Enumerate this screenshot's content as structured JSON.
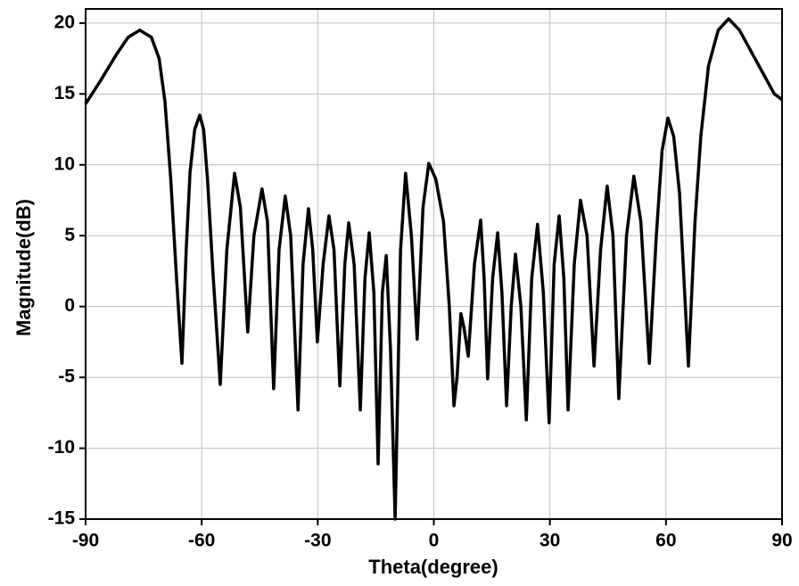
{
  "chart_data": {
    "type": "line",
    "x_label": "Theta(degree)",
    "y_label": "Magnitude(dB)",
    "x": [
      -90,
      -86,
      -82,
      -79,
      -76,
      -73,
      -71,
      -69.5,
      -68,
      -66.5,
      -65.1,
      -64,
      -63,
      -61.8,
      -60.5,
      -59.5,
      -58.5,
      -57,
      -55.2,
      -53.5,
      -51.5,
      -50,
      -48.1,
      -46.5,
      -44.4,
      -43,
      -41.4,
      -40,
      -38.4,
      -37,
      -35.1,
      -33.8,
      -32.4,
      -31.3,
      -30.1,
      -28.6,
      -27.1,
      -25.8,
      -24.3,
      -23,
      -22,
      -20.6,
      -19,
      -17.8,
      -16.7,
      -15.5,
      -14.4,
      -13.3,
      -12.3,
      -11.2,
      -10,
      -8.6,
      -7.3,
      -5.8,
      -4.3,
      -2.8,
      -1.3,
      0.5,
      2.5,
      4,
      5.2,
      6,
      7,
      7.8,
      8.9,
      10.5,
      12.1,
      13,
      13.9,
      15.2,
      16.5,
      17.6,
      18.8,
      20,
      21.1,
      22.5,
      23.9,
      25.3,
      26.8,
      28.3,
      29.8,
      31.1,
      32.4,
      33.6,
      34.7,
      36.3,
      37.9,
      39.6,
      41.4,
      43.1,
      44.8,
      46.3,
      47.8,
      49.8,
      51.7,
      53.5,
      55.7,
      57.5,
      59,
      60.5,
      62,
      63.5,
      65.8,
      67.5,
      69,
      71,
      73.5,
      76.2,
      79,
      82,
      85,
      88,
      90
    ],
    "values": [
      14.3,
      16,
      17.8,
      19,
      19.5,
      19,
      17.5,
      14.5,
      9,
      2,
      -4,
      4,
      9.5,
      12.5,
      13.5,
      12.5,
      9,
      2,
      -5.5,
      4,
      9.4,
      7,
      -1.8,
      5,
      8.3,
      6,
      -5.8,
      4,
      7.8,
      5,
      -7.3,
      3,
      6.9,
      4,
      -2.5,
      3,
      6.4,
      4,
      -5.6,
      3,
      5.9,
      3,
      -7.3,
      2,
      5.2,
      1,
      -11.1,
      1,
      3.6,
      -3,
      -15,
      4,
      9.4,
      5,
      -2.3,
      7,
      10.1,
      9,
      6,
      0,
      -7,
      -5,
      -0.5,
      -1.5,
      -3.5,
      3,
      6.1,
      2,
      -5.1,
      2,
      5.2,
      1,
      -7,
      0,
      3.7,
      0,
      -8,
      2,
      5.8,
      1,
      -8.2,
      3,
      6.4,
      2,
      -7.3,
      3,
      7.5,
      5,
      -4.2,
      4,
      8.5,
      5,
      -6.5,
      5,
      9.2,
      6,
      -4,
      5,
      11,
      13.3,
      12,
      8,
      -4.2,
      6,
      12,
      17,
      19.5,
      20.3,
      19.5,
      18,
      16.5,
      15,
      14.6
    ],
    "color": "#000000",
    "xlim": [
      -90,
      90
    ],
    "xticks": [
      -90,
      -60,
      -30,
      0,
      30,
      60,
      90
    ],
    "ylim": [
      -15,
      21
    ],
    "yticks": [
      -15,
      -10,
      -5,
      0,
      5,
      10,
      15,
      20
    ],
    "grid": true
  }
}
